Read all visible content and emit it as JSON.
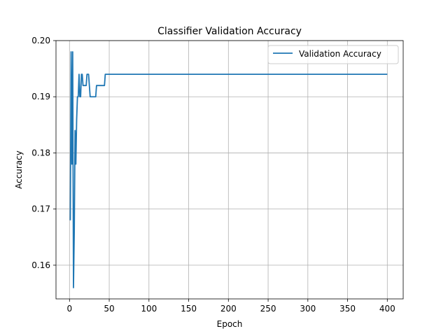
{
  "chart_data": {
    "type": "line",
    "title": "Classifier Validation Accuracy",
    "xlabel": "Epoch",
    "ylabel": "Accuracy",
    "xlim": [
      -17,
      420
    ],
    "ylim": [
      0.154,
      0.2
    ],
    "xticks": [
      0,
      50,
      100,
      150,
      200,
      250,
      300,
      350,
      400
    ],
    "xtick_labels": [
      "0",
      "50",
      "100",
      "150",
      "200",
      "250",
      "300",
      "350",
      "400"
    ],
    "yticks": [
      0.16,
      0.17,
      0.18,
      0.19,
      0.2
    ],
    "ytick_labels": [
      "0.16",
      "0.17",
      "0.18",
      "0.19",
      "0.20"
    ],
    "grid": true,
    "legend_position": "top-right",
    "series": [
      {
        "name": "Validation Accuracy",
        "color": "#1f77b4",
        "x": [
          1,
          2,
          3,
          4,
          5,
          6,
          7,
          8,
          9,
          10,
          11,
          12,
          13,
          14,
          15,
          16,
          17,
          18,
          19,
          20,
          21,
          22,
          23,
          24,
          25,
          26,
          27,
          28,
          29,
          30,
          31,
          32,
          33,
          34,
          35,
          36,
          37,
          38,
          39,
          40,
          41,
          42,
          43,
          44,
          45,
          50,
          100,
          150,
          200,
          250,
          300,
          350,
          400
        ],
        "y": [
          0.168,
          0.198,
          0.178,
          0.198,
          0.156,
          0.166,
          0.184,
          0.178,
          0.186,
          0.19,
          0.19,
          0.194,
          0.19,
          0.19,
          0.194,
          0.194,
          0.192,
          0.192,
          0.192,
          0.192,
          0.192,
          0.194,
          0.194,
          0.194,
          0.192,
          0.19,
          0.19,
          0.19,
          0.19,
          0.19,
          0.19,
          0.19,
          0.19,
          0.192,
          0.192,
          0.192,
          0.192,
          0.192,
          0.192,
          0.192,
          0.192,
          0.192,
          0.192,
          0.192,
          0.194,
          0.194,
          0.194,
          0.194,
          0.194,
          0.194,
          0.194,
          0.194,
          0.194
        ]
      }
    ]
  }
}
